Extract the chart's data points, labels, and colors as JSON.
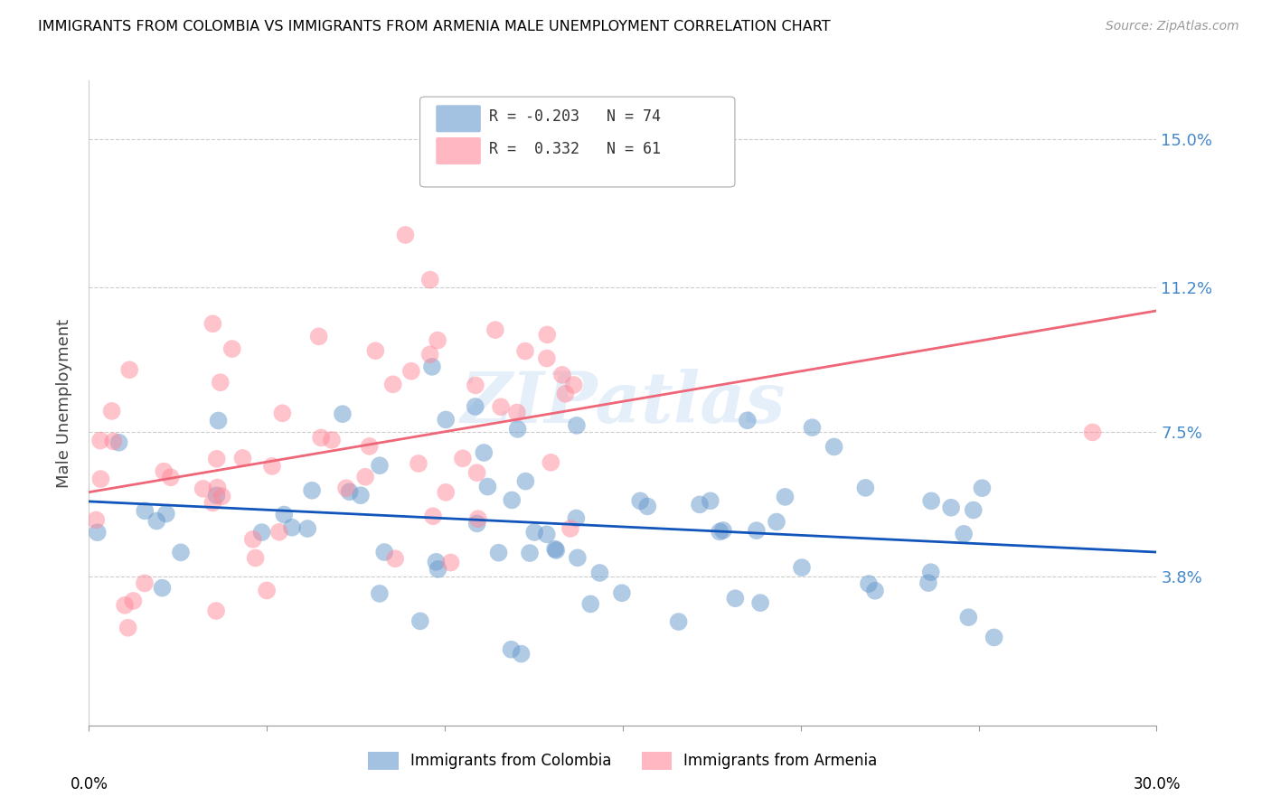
{
  "title": "IMMIGRANTS FROM COLOMBIA VS IMMIGRANTS FROM ARMENIA MALE UNEMPLOYMENT CORRELATION CHART",
  "source": "Source: ZipAtlas.com",
  "ylabel": "Male Unemployment",
  "ytick_labels": [
    "15.0%",
    "11.2%",
    "7.5%",
    "3.8%"
  ],
  "ytick_values": [
    0.15,
    0.112,
    0.075,
    0.038
  ],
  "xmin": 0.0,
  "xmax": 0.3,
  "ymin": 0.0,
  "ymax": 0.165,
  "colombia_color": "#6699CC",
  "armenia_color": "#FF8899",
  "colombia_line_color": "#1155BB",
  "armenia_line_color": "#EE6677",
  "colombia_R": -0.203,
  "colombia_N": 74,
  "armenia_R": 0.332,
  "armenia_N": 61,
  "watermark": "ZIPatlas"
}
